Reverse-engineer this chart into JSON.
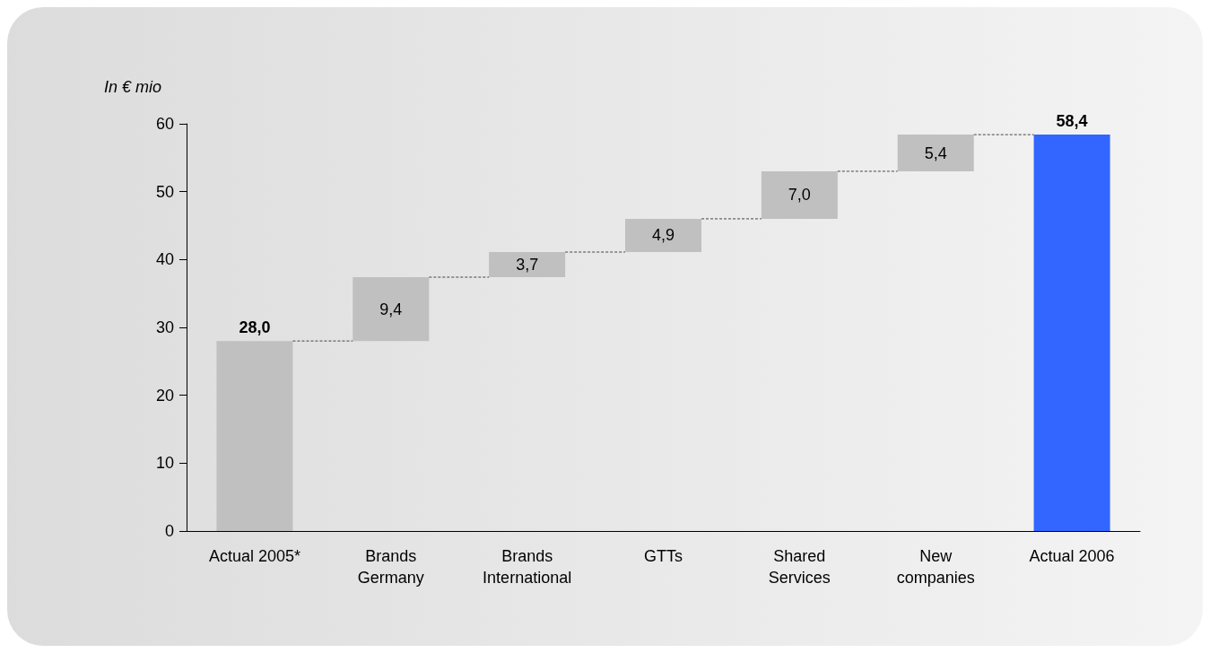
{
  "chart_data": {
    "type": "bar",
    "ylabel": "In € mio",
    "categories": [
      "Actual 2005*",
      "Brands\nGermany",
      "Brands\nInternational",
      "GTTs",
      "Shared\nServices",
      "New\ncompanies",
      "Actual 2006"
    ],
    "values": [
      28.0,
      9.4,
      3.7,
      4.9,
      7.0,
      5.4,
      58.4
    ],
    "base": [
      0,
      28.0,
      37.4,
      41.1,
      46.0,
      53.0,
      0
    ],
    "colors": [
      "#c0c0c0",
      "#c0c0c0",
      "#c0c0c0",
      "#c0c0c0",
      "#c0c0c0",
      "#c0c0c0",
      "#3366ff"
    ],
    "value_labels": [
      "28,0",
      "9,4",
      "3,7",
      "4,9",
      "7,0",
      "5,4",
      "58,4"
    ],
    "ylim": [
      0,
      60
    ],
    "yticks": [
      0,
      10,
      20,
      30,
      40,
      50,
      60
    ],
    "grid": false
  }
}
